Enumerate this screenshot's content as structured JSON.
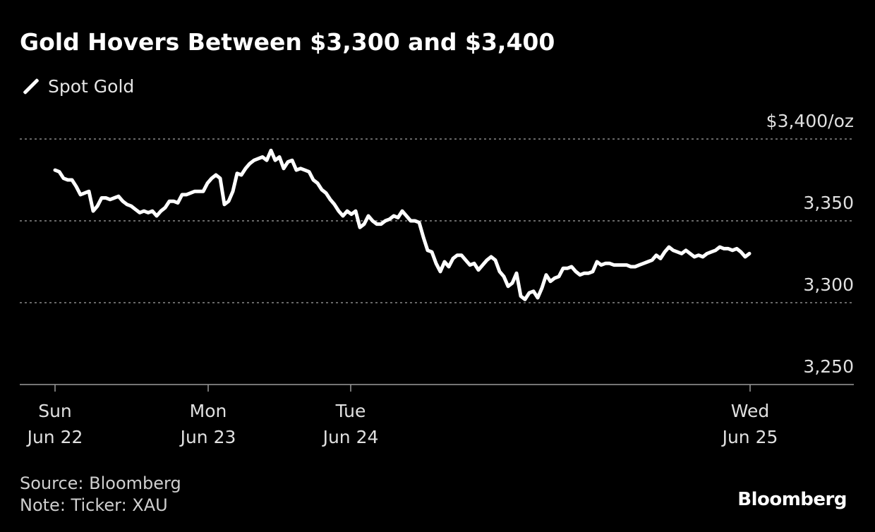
{
  "chart_data": {
    "type": "line",
    "title": "Gold Hovers Between $3,300 and $3,400",
    "legend": {
      "placement": "top-left",
      "entries": [
        "Spot Gold"
      ]
    },
    "ylabel_unit": "$3,400/oz",
    "ylim": [
      3250,
      3400
    ],
    "yticks": [
      3250,
      3300,
      3350,
      3400
    ],
    "ytick_labels": [
      "3,250",
      "3,300",
      "3,350",
      "$3,400/oz"
    ],
    "grid": "horizontal dotted",
    "xtick_labels": [
      {
        "day": "Sun",
        "date": "Jun 22"
      },
      {
        "day": "Mon",
        "date": "Jun 23"
      },
      {
        "day": "Tue",
        "date": "Jun 24"
      },
      {
        "day": "Wed",
        "date": "Jun 25"
      }
    ],
    "series": [
      {
        "name": "Spot Gold",
        "color": "#ffffff",
        "values": [
          3381,
          3380,
          3376,
          3375,
          3375,
          3371,
          3366,
          3367,
          3368,
          3356,
          3359,
          3364,
          3364,
          3363,
          3364,
          3365,
          3362,
          3360,
          3359,
          3357,
          3355,
          3356,
          3355,
          3356,
          3353,
          3356,
          3358,
          3362,
          3362,
          3361,
          3366,
          3366,
          3367,
          3368,
          3368,
          3368,
          3373,
          3376,
          3378,
          3376,
          3360,
          3362,
          3368,
          3379,
          3378,
          3382,
          3385,
          3387,
          3388,
          3389,
          3387,
          3393,
          3387,
          3389,
          3382,
          3386,
          3387,
          3381,
          3382,
          3381,
          3380,
          3375,
          3373,
          3369,
          3367,
          3363,
          3360,
          3356,
          3353,
          3356,
          3354,
          3356,
          3346,
          3348,
          3353,
          3350,
          3348,
          3348,
          3350,
          3351,
          3353,
          3352,
          3356,
          3353,
          3350,
          3350,
          3349,
          3340,
          3332,
          3331,
          3324,
          3319,
          3325,
          3322,
          3327,
          3329,
          3329,
          3326,
          3323,
          3324,
          3320,
          3323,
          3326,
          3328,
          3326,
          3319,
          3316,
          3310,
          3312,
          3318,
          3304,
          3302,
          3306,
          3307,
          3303,
          3309,
          3317,
          3313,
          3315,
          3316,
          3321,
          3321,
          3322,
          3319,
          3317,
          3318,
          3318,
          3319,
          3325,
          3323,
          3324,
          3324,
          3323,
          3323,
          3323,
          3323,
          3322,
          3322,
          3323,
          3324,
          3325,
          3326,
          3329,
          3327,
          3331,
          3334,
          3332,
          3331,
          3330,
          3332,
          3330,
          3328,
          3329,
          3328,
          3330,
          3331,
          3332,
          3334,
          3333,
          3333,
          3332,
          3333,
          3331,
          3328,
          3330
        ]
      }
    ]
  },
  "footer": {
    "source": "Source: Bloomberg",
    "note": "Note: Ticker: XAU",
    "logo": "Bloomberg"
  }
}
